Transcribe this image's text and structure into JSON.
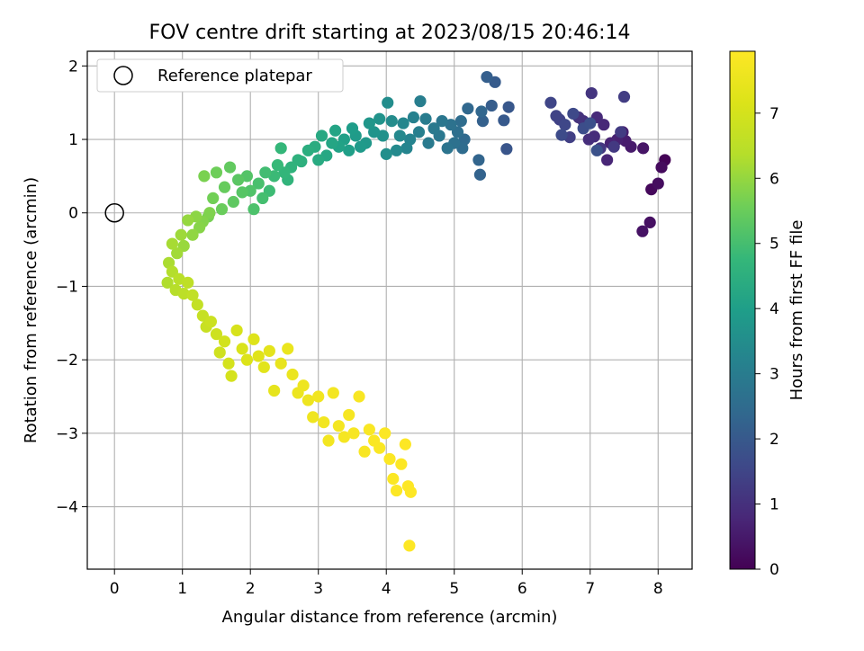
{
  "chart_data": {
    "type": "scatter",
    "title": "FOV centre drift starting at 2023/08/15 20:46:14",
    "xlabel": "Angular distance from reference (arcmin)",
    "ylabel": "Rotation from reference (arcmin)",
    "xlim": [
      -0.4,
      8.5
    ],
    "ylim": [
      -4.85,
      2.2
    ],
    "xticks": [
      "0",
      "1",
      "2",
      "3",
      "4",
      "5",
      "6",
      "7",
      "8"
    ],
    "yticks": [
      "2",
      "1",
      "0",
      "−1",
      "−2",
      "−3",
      "−4"
    ],
    "grid": true,
    "legend": {
      "position": "upper-left",
      "label": "Reference platepar"
    },
    "reference_point": {
      "x": 0,
      "y": 0
    },
    "colorbar": {
      "label": "Hours from first FF file",
      "range": [
        0,
        7.95
      ],
      "ticks": [
        "0",
        "1",
        "2",
        "3",
        "4",
        "5",
        "6",
        "7"
      ],
      "colormap": "viridis"
    },
    "points": [
      [
        8.1,
        0.72,
        0.05
      ],
      [
        7.9,
        0.32,
        0.15
      ],
      [
        8.05,
        0.62,
        0.2
      ],
      [
        8.0,
        0.4,
        0.25
      ],
      [
        7.88,
        -0.13,
        0.3
      ],
      [
        7.77,
        -0.25,
        0.35
      ],
      [
        7.78,
        0.88,
        0.4
      ],
      [
        7.6,
        0.9,
        0.5
      ],
      [
        7.52,
        0.98,
        0.55
      ],
      [
        7.48,
        1.1,
        0.6
      ],
      [
        7.4,
        1.0,
        0.65
      ],
      [
        7.3,
        0.95,
        0.7
      ],
      [
        7.25,
        0.72,
        0.75
      ],
      [
        7.2,
        1.2,
        0.8
      ],
      [
        7.1,
        1.3,
        0.85
      ],
      [
        7.06,
        1.04,
        0.9
      ],
      [
        6.98,
        1.0,
        0.95
      ],
      [
        6.9,
        1.25,
        1.0
      ],
      [
        6.83,
        1.3,
        1.05
      ],
      [
        7.02,
        1.63,
        1.1
      ],
      [
        7.15,
        0.88,
        1.15
      ],
      [
        7.35,
        0.9,
        1.2
      ],
      [
        7.45,
        1.1,
        1.25
      ],
      [
        7.5,
        1.58,
        1.3
      ],
      [
        6.7,
        1.03,
        1.35
      ],
      [
        6.55,
        1.27,
        1.4
      ],
      [
        6.5,
        1.32,
        1.45
      ],
      [
        6.42,
        1.5,
        1.5
      ],
      [
        6.63,
        1.2,
        1.55
      ],
      [
        6.75,
        1.35,
        1.6
      ],
      [
        6.58,
        1.06,
        1.65
      ],
      [
        6.9,
        1.15,
        1.7
      ],
      [
        7.0,
        1.22,
        1.75
      ],
      [
        7.1,
        0.85,
        1.8
      ],
      [
        5.77,
        0.87,
        1.9
      ],
      [
        5.8,
        1.44,
        1.95
      ],
      [
        5.73,
        1.26,
        2.0
      ],
      [
        5.6,
        1.78,
        2.05
      ],
      [
        5.55,
        1.46,
        2.1
      ],
      [
        5.48,
        1.85,
        2.15
      ],
      [
        5.42,
        1.25,
        2.2
      ],
      [
        5.38,
        0.52,
        2.25
      ],
      [
        5.36,
        0.72,
        2.3
      ],
      [
        5.4,
        1.38,
        2.35
      ],
      [
        5.2,
        1.42,
        2.4
      ],
      [
        5.15,
        1.0,
        2.45
      ],
      [
        5.12,
        0.88,
        2.5
      ],
      [
        5.1,
        1.25,
        2.55
      ],
      [
        5.05,
        1.1,
        2.6
      ],
      [
        5.0,
        0.95,
        2.65
      ],
      [
        4.95,
        1.2,
        2.7
      ],
      [
        4.9,
        0.88,
        2.75
      ],
      [
        4.82,
        1.25,
        2.8
      ],
      [
        4.78,
        1.05,
        2.85
      ],
      [
        4.7,
        1.15,
        2.9
      ],
      [
        4.62,
        0.95,
        2.95
      ],
      [
        4.58,
        1.28,
        3.0
      ],
      [
        4.5,
        1.52,
        3.05
      ],
      [
        4.48,
        1.1,
        3.1
      ],
      [
        4.4,
        1.3,
        3.15
      ],
      [
        4.35,
        1.0,
        3.2
      ],
      [
        4.3,
        0.88,
        3.25
      ],
      [
        4.25,
        1.22,
        3.3
      ],
      [
        4.2,
        1.05,
        3.35
      ],
      [
        4.15,
        0.85,
        3.4
      ],
      [
        4.08,
        1.25,
        3.45
      ],
      [
        4.02,
        1.5,
        3.5
      ],
      [
        4.0,
        0.8,
        3.55
      ],
      [
        3.95,
        1.05,
        3.6
      ],
      [
        3.9,
        1.28,
        3.65
      ],
      [
        3.82,
        1.1,
        3.7
      ],
      [
        3.75,
        1.22,
        3.75
      ],
      [
        3.7,
        0.95,
        3.8
      ],
      [
        3.62,
        0.9,
        3.85
      ],
      [
        3.55,
        1.05,
        3.9
      ],
      [
        3.5,
        1.15,
        3.95
      ],
      [
        3.45,
        0.85,
        4.0
      ],
      [
        3.38,
        1.0,
        4.05
      ],
      [
        3.3,
        0.9,
        4.1
      ],
      [
        3.25,
        1.12,
        4.15
      ],
      [
        3.2,
        0.95,
        4.2
      ],
      [
        3.12,
        0.78,
        4.25
      ],
      [
        3.05,
        1.05,
        4.3
      ],
      [
        3.0,
        0.72,
        4.35
      ],
      [
        2.95,
        0.9,
        4.4
      ],
      [
        2.85,
        0.85,
        4.45
      ],
      [
        2.75,
        0.7,
        4.5
      ],
      [
        2.7,
        0.72,
        4.55
      ],
      [
        2.6,
        0.62,
        4.6
      ],
      [
        2.55,
        0.45,
        4.65
      ],
      [
        2.5,
        0.55,
        4.7
      ],
      [
        2.45,
        0.88,
        4.75
      ],
      [
        2.4,
        0.65,
        4.8
      ],
      [
        2.35,
        0.5,
        4.85
      ],
      [
        2.28,
        0.3,
        4.9
      ],
      [
        2.22,
        0.55,
        4.95
      ],
      [
        2.18,
        0.2,
        5.0
      ],
      [
        2.12,
        0.4,
        5.05
      ],
      [
        2.05,
        0.05,
        5.1
      ],
      [
        2.0,
        0.3,
        5.15
      ],
      [
        1.95,
        0.5,
        5.2
      ],
      [
        1.88,
        0.28,
        5.25
      ],
      [
        1.82,
        0.45,
        5.3
      ],
      [
        1.75,
        0.15,
        5.35
      ],
      [
        1.7,
        0.62,
        5.4
      ],
      [
        1.62,
        0.35,
        5.45
      ],
      [
        1.58,
        0.05,
        5.5
      ],
      [
        1.5,
        0.55,
        5.55
      ],
      [
        1.45,
        0.2,
        5.6
      ],
      [
        1.38,
        -0.05,
        5.65
      ],
      [
        1.32,
        0.5,
        5.7
      ],
      [
        1.4,
        0.0,
        5.75
      ],
      [
        1.3,
        -0.12,
        5.8
      ],
      [
        1.25,
        -0.2,
        5.85
      ],
      [
        1.2,
        -0.05,
        5.9
      ],
      [
        1.15,
        -0.3,
        5.95
      ],
      [
        1.08,
        -0.1,
        6.0
      ],
      [
        1.02,
        -0.45,
        6.05
      ],
      [
        0.98,
        -0.3,
        6.1
      ],
      [
        0.92,
        -0.55,
        6.15
      ],
      [
        0.85,
        -0.42,
        6.2
      ],
      [
        0.8,
        -0.68,
        6.25
      ],
      [
        0.78,
        -0.95,
        6.3
      ],
      [
        0.85,
        -0.8,
        6.35
      ],
      [
        0.9,
        -1.05,
        6.4
      ],
      [
        0.95,
        -0.9,
        6.45
      ],
      [
        1.02,
        -1.1,
        6.5
      ],
      [
        1.08,
        -0.95,
        6.55
      ],
      [
        1.15,
        -1.12,
        6.6
      ],
      [
        1.22,
        -1.25,
        6.65
      ],
      [
        1.3,
        -1.4,
        6.7
      ],
      [
        1.35,
        -1.55,
        6.75
      ],
      [
        1.42,
        -1.48,
        6.8
      ],
      [
        1.5,
        -1.65,
        6.85
      ],
      [
        1.55,
        -1.9,
        6.9
      ],
      [
        1.62,
        -1.75,
        6.95
      ],
      [
        1.68,
        -2.05,
        7.0
      ],
      [
        1.72,
        -2.22,
        7.02
      ],
      [
        1.8,
        -1.6,
        7.05
      ],
      [
        1.88,
        -1.85,
        7.1
      ],
      [
        1.95,
        -2.0,
        7.15
      ],
      [
        2.05,
        -1.72,
        7.2
      ],
      [
        2.12,
        -1.95,
        7.25
      ],
      [
        2.2,
        -2.1,
        7.3
      ],
      [
        2.28,
        -1.88,
        7.35
      ],
      [
        2.35,
        -2.42,
        7.4
      ],
      [
        2.45,
        -2.05,
        7.45
      ],
      [
        2.55,
        -1.85,
        7.5
      ],
      [
        2.62,
        -2.2,
        7.52
      ],
      [
        2.7,
        -2.45,
        7.55
      ],
      [
        2.78,
        -2.35,
        7.58
      ],
      [
        2.85,
        -2.55,
        7.6
      ],
      [
        2.92,
        -2.78,
        7.62
      ],
      [
        3.0,
        -2.5,
        7.65
      ],
      [
        3.08,
        -2.85,
        7.68
      ],
      [
        3.15,
        -3.1,
        7.7
      ],
      [
        3.22,
        -2.45,
        7.72
      ],
      [
        3.3,
        -2.9,
        7.74
      ],
      [
        3.38,
        -3.05,
        7.76
      ],
      [
        3.45,
        -2.75,
        7.78
      ],
      [
        3.52,
        -3.0,
        7.8
      ],
      [
        3.6,
        -2.5,
        7.82
      ],
      [
        3.68,
        -3.25,
        7.84
      ],
      [
        3.75,
        -2.95,
        7.86
      ],
      [
        3.82,
        -3.1,
        7.87
      ],
      [
        3.9,
        -3.2,
        7.88
      ],
      [
        3.98,
        -3.0,
        7.89
      ],
      [
        4.05,
        -3.35,
        7.9
      ],
      [
        4.1,
        -3.62,
        7.91
      ],
      [
        4.15,
        -3.78,
        7.92
      ],
      [
        4.22,
        -3.42,
        7.93
      ],
      [
        4.28,
        -3.15,
        7.94
      ],
      [
        4.32,
        -3.72,
        7.945
      ],
      [
        4.36,
        -3.8,
        7.95
      ],
      [
        4.34,
        -4.53,
        7.95
      ]
    ]
  }
}
